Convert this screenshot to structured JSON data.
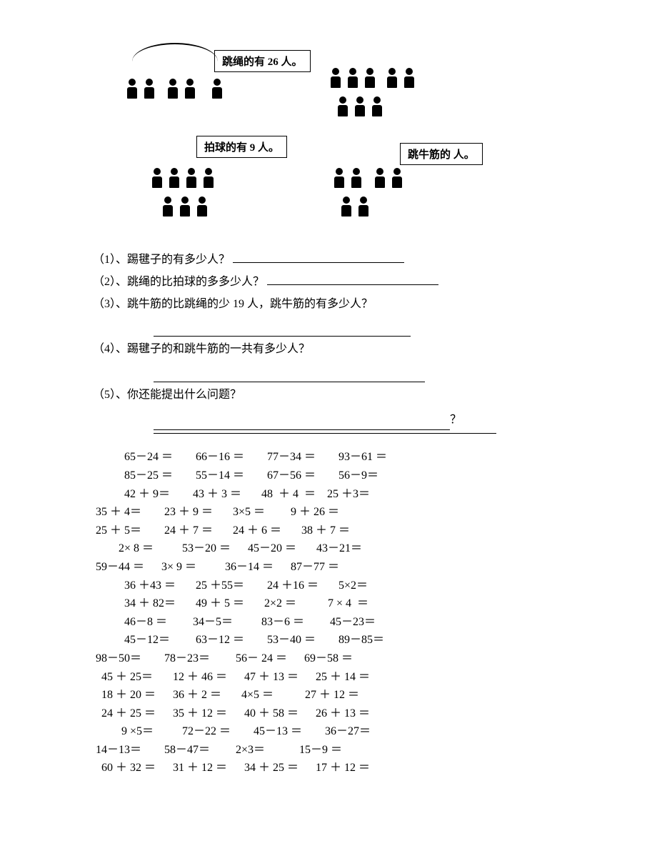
{
  "illustration": {
    "labels": {
      "jump_rope": "跳绳的有 26 人。",
      "pat_ball": "拍球的有 9 人。",
      "rubber_band": "跳牛筋的     人。"
    }
  },
  "questions": {
    "q1_prefix": "（1）、踢毽子的有多少人？",
    "q2_prefix": "（2）、跳绳的比拍球的多多少人？",
    "q3_text": "（3）、跳牛筋的比跳绳的少 19 人，跳牛筋的有多少人？",
    "q4_text": "（4）、踢毽子的和跳牛筋的一共有多少人？",
    "q5_text": "（5）、你还能提出什么问题？",
    "q5_suffix": "？"
  },
  "arith_rows": [
    "          65－24 ＝        66－16 ＝        77－34 ＝        93－61 ＝",
    "          85－25 ＝        55－14 ＝        67－56 ＝        56－9＝",
    "          42 ＋ 9＝        43 ＋ 3 ＝       48  ＋ 4  ＝    25 ＋3＝",
    "35 ＋ 4＝        23 ＋ 9 ＝       3×5 ＝         9 ＋ 26 ＝",
    "25 ＋ 5＝        24 ＋ 7 ＝       24 ＋ 6 ＝       38 ＋ 7 ＝",
    "        2× 8 ＝          53－20 ＝      45－20 ＝       43－21＝",
    "59－44 ＝      3× 9 ＝          36－14 ＝      87－77 ＝",
    "          36 ＋43 ＝       25 ＋55＝        24 ＋16 ＝       5×2＝",
    "          34 ＋ 82＝       49 ＋ 5 ＝       2×2 ＝           7 × 4  ＝",
    "          46－8 ＝         34－5＝          83－6 ＝         45－23＝",
    "          45－12＝         63－12 ＝        53－40 ＝        89－85＝",
    "98－50＝        78－23＝         56－ 24 ＝      69－58 ＝",
    "  45 ＋ 25＝       12 ＋ 46 ＝      47 ＋ 13 ＝      25 ＋ 14 ＝",
    "  18 ＋ 20 ＝      36 ＋ 2 ＝       4×5 ＝           27 ＋ 12 ＝",
    "  24 ＋ 25 ＝      35 ＋ 12 ＝      40 ＋ 58 ＝      26 ＋ 13 ＝",
    "         9 ×5＝          72－22 ＝        45－13 ＝        36－27＝",
    "14－13＝        58－47＝         2×3＝            15－9 ＝",
    "  60 ＋ 32 ＝      31 ＋ 12 ＝      34 ＋ 25 ＝      17 ＋ 12 ＝"
  ]
}
